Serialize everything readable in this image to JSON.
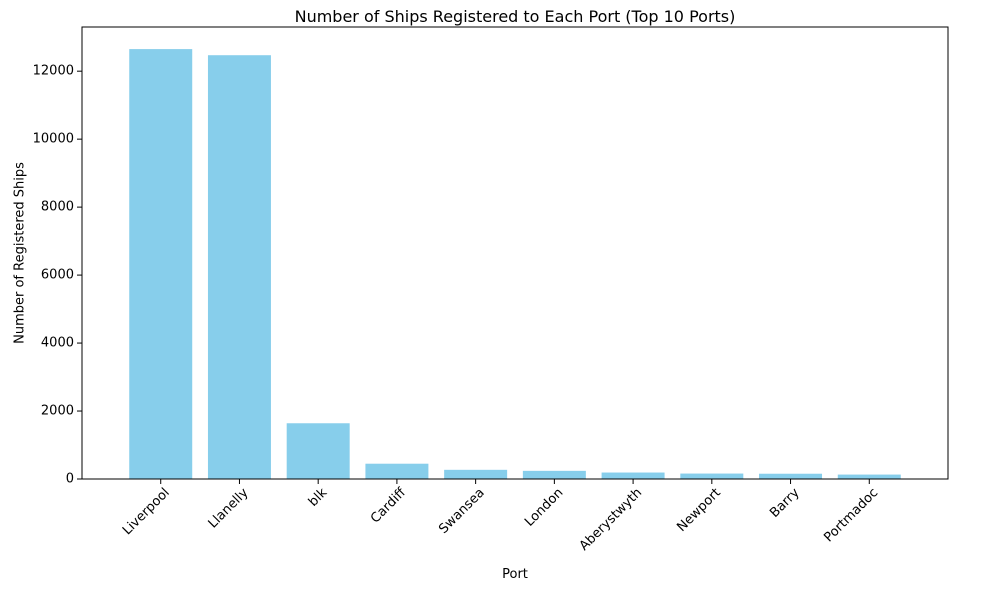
{
  "chart_data": {
    "type": "bar",
    "title": "Number of Ships Registered to Each Port (Top 10 Ports)",
    "xlabel": "Port",
    "ylabel": "Number of Registered Ships",
    "categories": [
      "Liverpool",
      "Llanelly",
      "blk",
      "Cardiff",
      "Swansea",
      "London",
      "Aberystwyth",
      "Newport",
      "Barry",
      "Portmadoc"
    ],
    "values": [
      12650,
      12470,
      1640,
      450,
      270,
      240,
      190,
      160,
      155,
      130
    ],
    "ylim": [
      0,
      13300
    ],
    "yticks": [
      0,
      2000,
      4000,
      6000,
      8000,
      10000,
      12000
    ],
    "grid": false,
    "legend": "none",
    "bar_color": "#87ceeb",
    "x_tick_rotation": 45
  }
}
